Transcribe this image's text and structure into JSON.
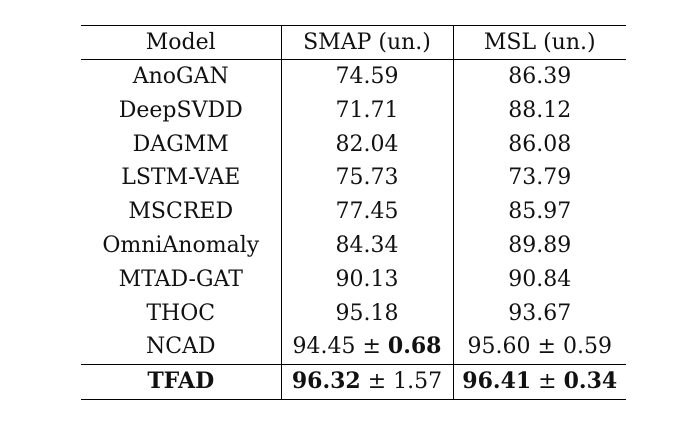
{
  "table": {
    "headers": [
      "Model",
      "SMAP (un.)",
      "MSL (un.)"
    ],
    "rows": [
      {
        "model": "AnoGAN",
        "smap": "74.59",
        "msl": "86.39"
      },
      {
        "model": "DeepSVDD",
        "smap": "71.71",
        "msl": "88.12"
      },
      {
        "model": "DAGMM",
        "smap": "82.04",
        "msl": "86.08"
      },
      {
        "model": "LSTM-VAE",
        "smap": "75.73",
        "msl": "73.79"
      },
      {
        "model": "MSCRED",
        "smap": "77.45",
        "msl": "85.97"
      },
      {
        "model": "OmniAnomaly",
        "smap": "84.34",
        "msl": "89.89"
      },
      {
        "model": "MTAD-GAT",
        "smap": "90.13",
        "msl": "90.84"
      },
      {
        "model": "THOC",
        "smap": "95.18",
        "msl": "93.67"
      }
    ],
    "ncad": {
      "model": "NCAD",
      "smap_mean": "94.45",
      "smap_pm": " ± ",
      "smap_std": "0.68",
      "msl_mean": "95.60",
      "msl_pm": " ± ",
      "msl_std": "0.59"
    },
    "tfad": {
      "model": "TFAD",
      "smap_mean": "96.32",
      "smap_pm": " ± ",
      "smap_std": "1.57",
      "msl_mean": "96.41",
      "msl_pm": " ± ",
      "msl_std": "0.34"
    }
  }
}
